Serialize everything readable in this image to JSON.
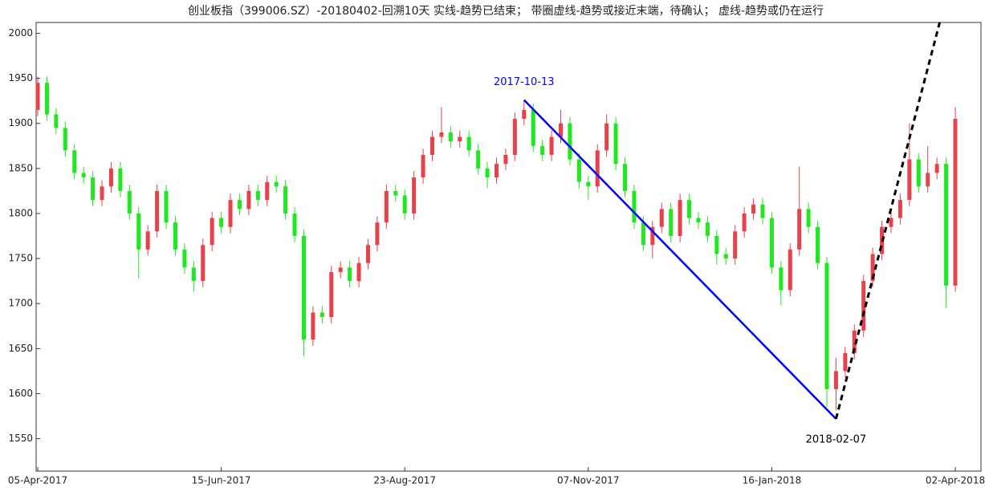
{
  "chart_data": {
    "type": "candlestick",
    "title": "创业板指（399006.SZ）-20180402-回溯10天  实线-趋势已结束；  带圈虚线-趋势或接近末端，待确认；  虚线-趋势或仍在运行",
    "categories": [
      "05-Apr-2017",
      null,
      null,
      null,
      null,
      null,
      null,
      null,
      null,
      null,
      null,
      null,
      null,
      null,
      null,
      null,
      null,
      null,
      null,
      null,
      "15-Jun-2017",
      null,
      null,
      null,
      null,
      null,
      null,
      null,
      null,
      null,
      null,
      null,
      null,
      null,
      null,
      null,
      null,
      null,
      null,
      null,
      "23-Aug-2017",
      null,
      null,
      null,
      null,
      null,
      null,
      null,
      null,
      null,
      null,
      null,
      null,
      null,
      null,
      null,
      null,
      null,
      null,
      null,
      "07-Nov-2017",
      null,
      null,
      null,
      null,
      null,
      null,
      null,
      null,
      null,
      null,
      null,
      null,
      null,
      null,
      null,
      null,
      null,
      null,
      null,
      "16-Jan-2018",
      null,
      null,
      null,
      null,
      null,
      null,
      null,
      null,
      null,
      null,
      null,
      null,
      null,
      null,
      null,
      null,
      null,
      null,
      null,
      "02-Apr-2018"
    ],
    "open": [
      1915,
      1945,
      1910,
      1895,
      1870,
      1845,
      1840,
      1815,
      1830,
      1850,
      1825,
      1800,
      1760,
      1780,
      1825,
      1790,
      1760,
      1740,
      1725,
      1765,
      1795,
      1785,
      1815,
      1805,
      1825,
      1815,
      1835,
      1830,
      1800,
      1775,
      1660,
      1690,
      1685,
      1735,
      1740,
      1725,
      1745,
      1765,
      1790,
      1825,
      1820,
      1800,
      1840,
      1865,
      1885,
      1890,
      1880,
      1885,
      1870,
      1850,
      1840,
      1855,
      1865,
      1905,
      1915,
      1875,
      1865,
      1885,
      1900,
      1860,
      1835,
      1830,
      1870,
      1900,
      1855,
      1825,
      1790,
      1765,
      1785,
      1805,
      1775,
      1815,
      1795,
      1790,
      1775,
      1755,
      1750,
      1780,
      1800,
      1810,
      1795,
      1740,
      1715,
      1760,
      1805,
      1785,
      1745,
      1605,
      1625,
      1645,
      1670,
      1725,
      1755,
      1785,
      1795,
      1815,
      1860,
      1830,
      1845,
      1855,
      1720
    ],
    "high": [
      1952,
      1952,
      1917,
      1902,
      1877,
      1852,
      1847,
      1837,
      1857,
      1857,
      1832,
      1807,
      1787,
      1832,
      1832,
      1797,
      1767,
      1747,
      1772,
      1802,
      1802,
      1822,
      1822,
      1832,
      1832,
      1842,
      1842,
      1837,
      1807,
      1782,
      1697,
      1697,
      1742,
      1747,
      1747,
      1752,
      1772,
      1797,
      1832,
      1832,
      1827,
      1847,
      1872,
      1892,
      1918,
      1897,
      1892,
      1892,
      1877,
      1857,
      1862,
      1872,
      1912,
      1926,
      1922,
      1882,
      1892,
      1915,
      1907,
      1867,
      1842,
      1877,
      1910,
      1907,
      1862,
      1832,
      1797,
      1792,
      1812,
      1812,
      1822,
      1822,
      1802,
      1797,
      1782,
      1762,
      1787,
      1807,
      1817,
      1817,
      1802,
      1747,
      1767,
      1852,
      1812,
      1792,
      1752,
      1640,
      1652,
      1677,
      1732,
      1762,
      1792,
      1802,
      1822,
      1900,
      1867,
      1875,
      1862,
      1862,
      1918
    ],
    "low": [
      1908,
      1903,
      1888,
      1863,
      1838,
      1833,
      1808,
      1808,
      1823,
      1818,
      1793,
      1728,
      1753,
      1773,
      1783,
      1753,
      1733,
      1713,
      1718,
      1758,
      1778,
      1778,
      1798,
      1798,
      1808,
      1808,
      1823,
      1793,
      1768,
      1642,
      1653,
      1678,
      1678,
      1728,
      1718,
      1718,
      1738,
      1758,
      1783,
      1813,
      1793,
      1793,
      1833,
      1858,
      1878,
      1873,
      1873,
      1863,
      1843,
      1828,
      1833,
      1848,
      1858,
      1898,
      1868,
      1858,
      1858,
      1878,
      1853,
      1828,
      1815,
      1823,
      1863,
      1848,
      1818,
      1783,
      1758,
      1750,
      1778,
      1768,
      1768,
      1788,
      1783,
      1768,
      1743,
      1743,
      1743,
      1773,
      1793,
      1788,
      1733,
      1698,
      1708,
      1753,
      1778,
      1738,
      1585,
      1582,
      1618,
      1638,
      1663,
      1718,
      1748,
      1778,
      1788,
      1808,
      1823,
      1823,
      1838,
      1695,
      1713
    ],
    "close": [
      1945,
      1910,
      1895,
      1870,
      1845,
      1840,
      1815,
      1830,
      1850,
      1825,
      1800,
      1760,
      1780,
      1825,
      1790,
      1760,
      1740,
      1725,
      1765,
      1795,
      1785,
      1815,
      1805,
      1825,
      1815,
      1835,
      1830,
      1800,
      1775,
      1660,
      1690,
      1685,
      1735,
      1740,
      1725,
      1745,
      1765,
      1790,
      1825,
      1820,
      1800,
      1840,
      1865,
      1885,
      1890,
      1880,
      1885,
      1870,
      1850,
      1840,
      1855,
      1865,
      1905,
      1915,
      1875,
      1865,
      1885,
      1900,
      1860,
      1835,
      1830,
      1870,
      1900,
      1855,
      1825,
      1790,
      1765,
      1785,
      1805,
      1775,
      1815,
      1795,
      1790,
      1775,
      1755,
      1750,
      1780,
      1800,
      1810,
      1795,
      1740,
      1715,
      1760,
      1805,
      1785,
      1745,
      1605,
      1625,
      1645,
      1670,
      1725,
      1755,
      1785,
      1795,
      1815,
      1860,
      1830,
      1845,
      1855,
      1720,
      1905
    ],
    "up_color": "#e8414b",
    "down_color": "#1ee81e",
    "ylim": [
      1514,
      2012
    ],
    "yticks": [
      1550,
      1600,
      1650,
      1700,
      1750,
      1800,
      1850,
      1900,
      1950,
      2000
    ],
    "grid": false,
    "trend_lines": [
      {
        "start_index": 53,
        "start_value": 1926,
        "end_index": 87,
        "end_value": 1572,
        "color": "#0000ff",
        "style": "solid"
      },
      {
        "start_index": 87,
        "start_value": 1572,
        "end_index": 98.3,
        "end_value": 2012,
        "color": "#000000",
        "style": "dashed"
      }
    ],
    "annotations": [
      {
        "text": "2017-10-13",
        "index": 53,
        "value": 1926,
        "color": "#0000ff",
        "side": "above"
      },
      {
        "text": "2018-02-07",
        "index": 87,
        "value": 1572,
        "color": "#000000",
        "side": "below"
      }
    ]
  }
}
